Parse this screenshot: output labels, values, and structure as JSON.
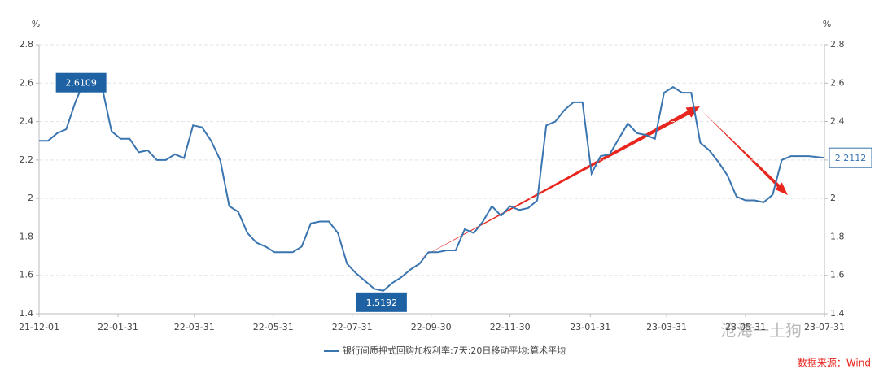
{
  "chart_data": {
    "type": "line",
    "ylabel": "%",
    "y2label": "%",
    "x": [
      "21-12-01",
      "21-12-08",
      "21-12-15",
      "21-12-22",
      "21-12-29",
      "22-01-05",
      "22-01-12",
      "22-01-19",
      "22-01-26",
      "22-02-02",
      "22-02-09",
      "22-02-16",
      "22-02-23",
      "22-03-02",
      "22-03-09",
      "22-03-16",
      "22-03-23",
      "22-03-30",
      "22-04-06",
      "22-04-13",
      "22-04-20",
      "22-04-27",
      "22-05-04",
      "22-05-11",
      "22-05-18",
      "22-05-25",
      "22-06-01",
      "22-06-08",
      "22-06-15",
      "22-06-22",
      "22-06-29",
      "22-07-06",
      "22-07-13",
      "22-07-20",
      "22-07-27",
      "22-08-03",
      "22-08-10",
      "22-08-17",
      "22-08-24",
      "22-08-31",
      "22-09-07",
      "22-09-14",
      "22-09-21",
      "22-09-28",
      "22-10-05",
      "22-10-12",
      "22-10-19",
      "22-10-26",
      "22-11-02",
      "22-11-09",
      "22-11-16",
      "22-11-23",
      "22-11-30",
      "22-12-07",
      "22-12-14",
      "22-12-21",
      "22-12-28",
      "23-01-04",
      "23-01-11",
      "23-01-18",
      "23-01-25",
      "23-02-01",
      "23-02-08",
      "23-02-15",
      "23-02-22",
      "23-03-01",
      "23-03-08",
      "23-03-15",
      "23-03-22",
      "23-03-29",
      "23-04-05",
      "23-04-12",
      "23-04-19",
      "23-04-26",
      "23-05-03",
      "23-05-10",
      "23-05-17",
      "23-05-24",
      "23-05-31",
      "23-06-07",
      "23-06-14",
      "23-06-21",
      "23-06-28",
      "23-07-05",
      "23-07-12",
      "23-07-19",
      "23-07-31"
    ],
    "series": [
      {
        "name": "银行间质押式回购加权利率:7天:20日移动平均:算术平均",
        "color": "#3a75b0",
        "values": [
          2.3,
          2.3,
          2.34,
          2.36,
          2.5,
          2.6109,
          2.56,
          2.57,
          2.35,
          2.31,
          2.31,
          2.24,
          2.25,
          2.2,
          2.2,
          2.23,
          2.21,
          2.38,
          2.37,
          2.3,
          2.2,
          1.96,
          1.93,
          1.82,
          1.77,
          1.75,
          1.72,
          1.72,
          1.72,
          1.75,
          1.87,
          1.88,
          1.88,
          1.82,
          1.66,
          1.61,
          1.57,
          1.53,
          1.5192,
          1.56,
          1.59,
          1.63,
          1.66,
          1.72,
          1.72,
          1.73,
          1.73,
          1.84,
          1.82,
          1.88,
          1.96,
          1.91,
          1.96,
          1.94,
          1.95,
          1.99,
          2.38,
          2.4,
          2.46,
          2.5,
          2.5,
          2.13,
          2.22,
          2.23,
          2.31,
          2.39,
          2.34,
          2.33,
          2.31,
          2.55,
          2.58,
          2.55,
          2.55,
          2.29,
          2.25,
          2.19,
          2.12,
          2.01,
          1.99,
          1.99,
          1.98,
          2.02,
          2.2,
          2.22,
          2.22,
          2.22,
          2.2112
        ]
      }
    ],
    "xlim": [
      "21-12-01",
      "23-07-31"
    ],
    "xticks": [
      "21-12-01",
      "22-01-31",
      "22-03-31",
      "22-05-31",
      "22-07-31",
      "22-09-30",
      "22-11-30",
      "23-01-31",
      "23-03-31",
      "23-05-31",
      "23-07-31"
    ],
    "ylim": [
      1.4,
      2.8
    ],
    "yticks": [
      1.4,
      1.6,
      1.8,
      2,
      2.2,
      2.4,
      2.6,
      2.8
    ],
    "y2lim": [
      1.4,
      2.8
    ],
    "y2ticks": [
      1.4,
      1.6,
      1.8,
      2,
      2.2,
      2.4,
      2.6,
      2.8
    ],
    "grid": true,
    "legend": "bottom",
    "watermark": "沧海一土狗",
    "source": "数据来源：Wind"
  }
}
